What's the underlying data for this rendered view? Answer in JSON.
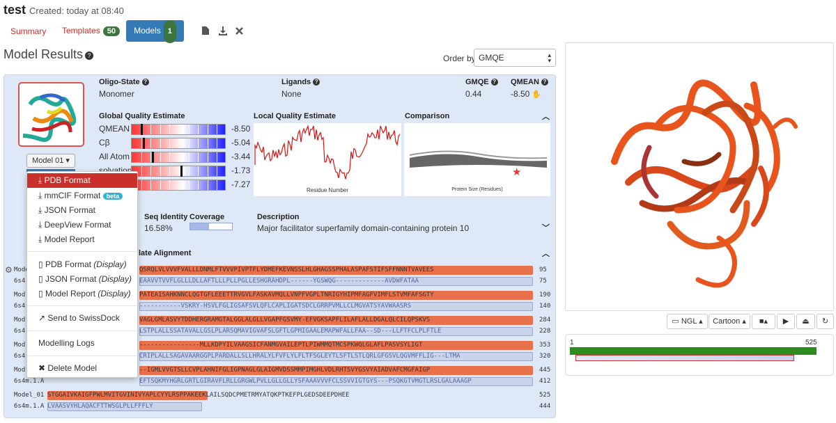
{
  "header": {
    "title": "test",
    "created": "Created: today at 08:40"
  },
  "tabs": [
    {
      "label": "Summary"
    },
    {
      "label": "Templates",
      "badge": "50"
    },
    {
      "label": "Models",
      "badge": "1"
    }
  ],
  "toolbar_icons": [
    "file-icon",
    "download-icon",
    "close-icon"
  ],
  "results": {
    "title": "Model Results",
    "order_by_label": "Order by:",
    "order_by_value": "GMQE"
  },
  "model": {
    "oligo_label": "Oligo-State",
    "oligo_value": "Monomer",
    "ligands_label": "Ligands",
    "ligands_value": "None",
    "gmqe_label": "GMQE",
    "gmqe_value": "0.44",
    "qmean_label": "QMEAN",
    "qmean_value": "-8.50",
    "model_button": "Model 01",
    "gq_title": "Global Quality Estimate",
    "lq_title": "Local Quality Estimate",
    "cmp_title": "Comparison",
    "gq_rows": [
      {
        "label": "QMEAN",
        "value": "-8.50",
        "mark": 0.1
      },
      {
        "label": "Cβ",
        "value": "-5.04",
        "mark": 0.12
      },
      {
        "label": "All Atom",
        "value": "-3.44",
        "mark": 0.22
      },
      {
        "label": "solvation",
        "value": "-1.73",
        "mark": 0.52
      },
      {
        "label": "",
        "value": "-7.27",
        "mark": 0.04
      }
    ],
    "lq_xlabel": "Residue Number",
    "cmp_xlabel": "Protein Size (Residues)",
    "seq_identity_label": "Seq Identity",
    "seq_identity_value": "16.58%",
    "coverage_label": "Coverage",
    "coverage_value": 0.45,
    "desc_label": "Description",
    "desc_value": "Major facilitator superfamily domain-containing protein 10",
    "alignment_title": "late Alignment"
  },
  "menu": {
    "items": [
      "PDB Format",
      "mmCIF Format",
      "JSON Format",
      "DeepView Format",
      "Model Report",
      "PDB Format",
      "JSON Format",
      "Model Report",
      "Send to SwissDock",
      "Modelling Logs",
      "Delete Model"
    ],
    "display_suffix": "(Display)",
    "beta": "beta"
  },
  "alignment": [
    {
      "q": "Mode",
      "qseq": "QSRQLVLVVVFVALLLDNMLFTVVVPIVPTFLYDMEFKEVNSSLHLGHAGSSPHALASPAFSTIFSFFNNNTVAVEES",
      "qn": "95",
      "t": "6s4",
      "tseq": "EAAVVTVVFLGLLLDLLAFTLLLPLLPGLLESHGRAHDPL------YGSWQG-------------AVDWFATAA",
      "tn": "75"
    },
    {
      "q": "Mod",
      "qseq": "PATEAISAHKNNCLQGTGFLEEETTRVGVLFASKAVMQLLVNPFVGPLTNRIGYHIPMFAGFVIMFLSTVMFAFSGTY",
      "qn": "190",
      "t": "6s4",
      "tseq": "-----------VSKRY-HSVLFGLIGSAFSVLQFLCAPLIGATSDCLGRRPVMLLCLMGVATSYAVWAASRS",
      "tn": "140"
    },
    {
      "q": "Mod",
      "qseq": "VAGLGMLASVYTDDHERGRAMGTALGGLALGLLVGAPFGSVMY-EFVGKSAPFLILAFLALLDGALQLCILQPSKVS",
      "qn": "284",
      "t": "6s4",
      "tseq": "LSTPLALLSSATAVALLGSLPLARSQMAVIGVAFSLGFTLGPMIGAALEMAPWFALLFAA--SD---LLFTFCLPLFTLE",
      "tn": "228"
    },
    {
      "q": "Mod",
      "qseq": "----------------MLLKDPYILVAAGSICFANMGVAILEPTLPIWMMQTMCSPKWQLGLAFLPASVSYLIGT",
      "qn": "353",
      "t": "6s4",
      "tseq": "CRIPLALLSAGAVAARGGPLPARDALLSLLHRALYLFVFLYLFLTFSGLEYTLSFTLSTLQRLGFGSVLQGVMFFLIG---LTMA",
      "tn": "320"
    },
    {
      "q": "Mod",
      "qseq": "--IGMLVVGTSLLCVPLAHNIFGLIGPNAGLGLAIGMVDSSMMPIMGHLVDLRHTSVYGSVYAIADVAFCMGFAIGP",
      "qn": "445",
      "t": "6s4m.1.A",
      "tseq": "EFTSQKMYHGRLGRTLGIRAVFLRLLGRGWLPVLLGLLGLLYSFAAAVVVFCLSSVVIGTGYS---PSQKGTVMGTLRSLGALAAAGP",
      "tn": "412"
    },
    {
      "q": "Model_01",
      "qseq": "STGGAIVKAIGFPWLMVITGVINIVYAPLCYYLRSPPAKEEKLAILSQDCPMETRMYATQKPTKEFPLGEDSDEEPDHEE",
      "qn": "525",
      "t": "6s4m.1.A",
      "tseq": "LVAASVYHLAQACFTTWSGLPLLFFFLY",
      "tn": "444"
    }
  ],
  "viewer": {
    "ngl_label": "NGL",
    "cartoon_label": "Cartoon",
    "range_start": "1",
    "range_end": "525"
  },
  "colors": {
    "accent": "#337ab7",
    "danger": "#c9302c",
    "badge": "#3c763d",
    "protein": "#e8541c"
  }
}
